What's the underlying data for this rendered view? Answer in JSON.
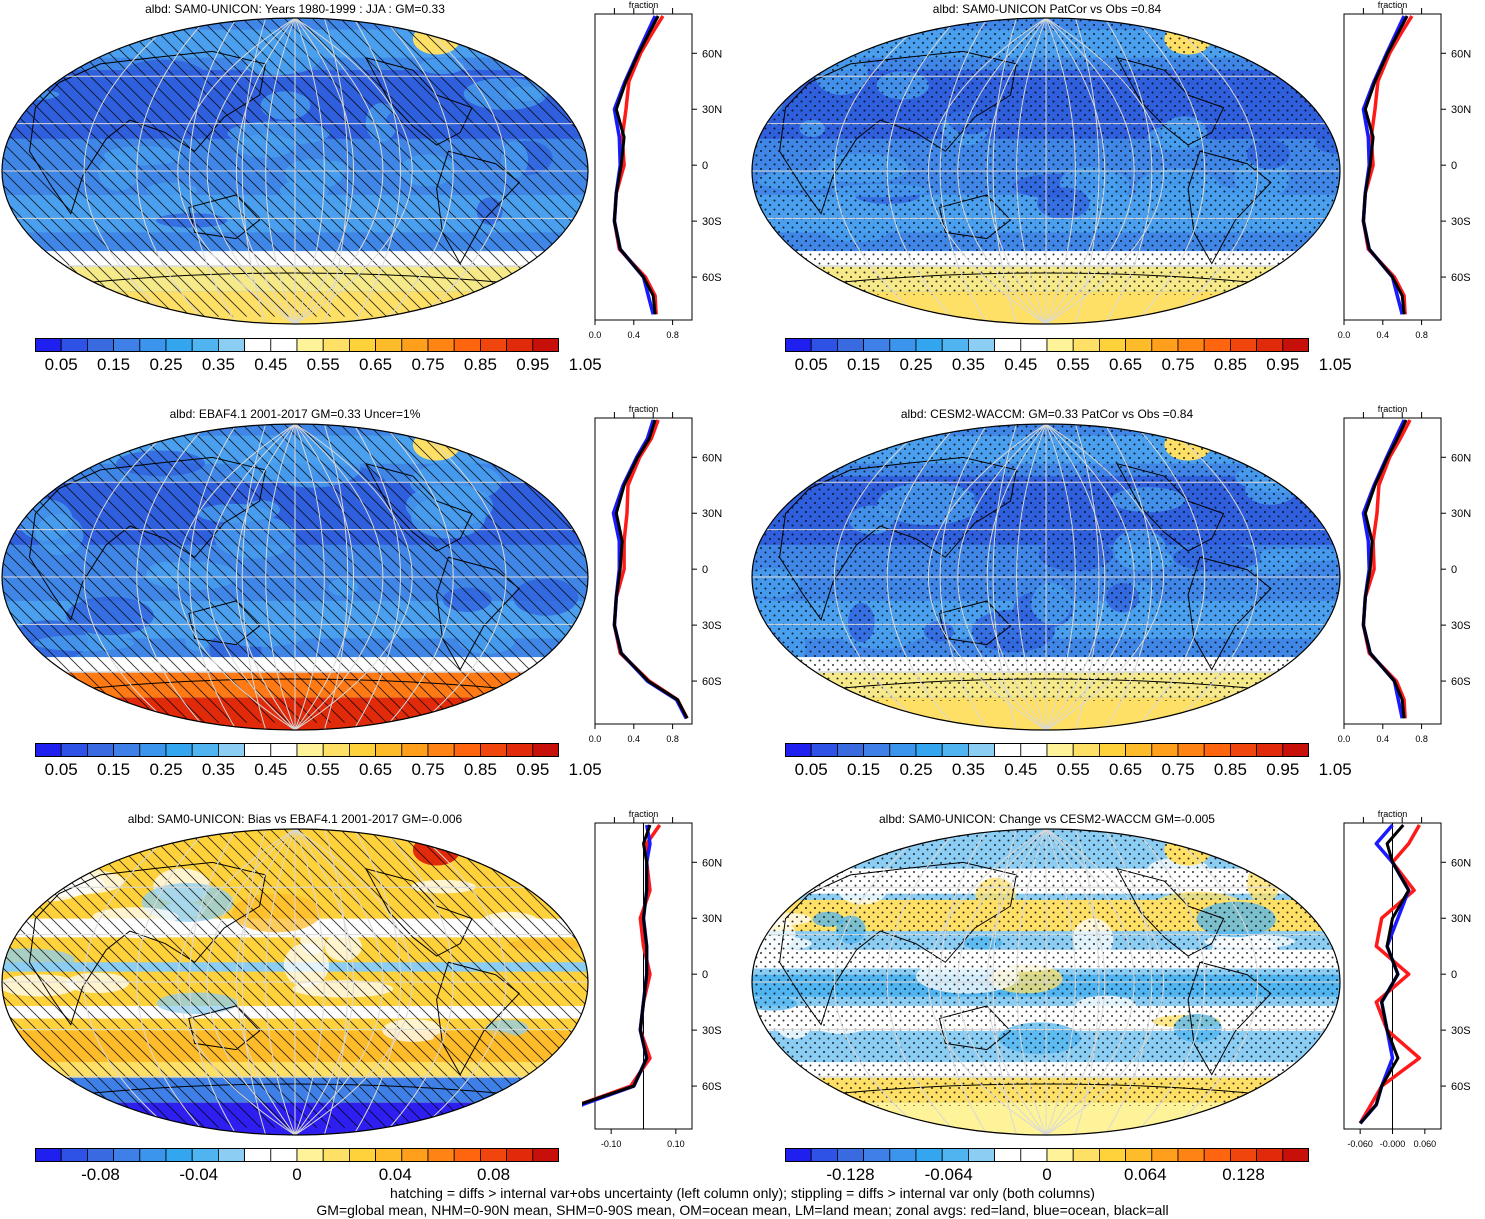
{
  "panels": [
    {
      "id": "p1",
      "title": "albd: SAM0-UNICON: Years 1980-1999 : JJA : GM=0.33",
      "kind": "abs",
      "overlay": "hatch",
      "zonal_xticks": [
        "0.0",
        "0.4",
        "0.8"
      ]
    },
    {
      "id": "p2",
      "title": "albd: SAM0-UNICON PatCor vs Obs =0.84",
      "kind": "abs",
      "overlay": "stipple",
      "zonal_xticks": [
        "0.0",
        "0.4",
        "0.8"
      ]
    },
    {
      "id": "p3",
      "title": "albd: EBAF4.1 2001-2017 GM=0.33 Uncer=1%",
      "kind": "obs",
      "overlay": "hatch",
      "zonal_xticks": [
        "0.0",
        "0.4",
        "0.8"
      ]
    },
    {
      "id": "p4",
      "title": "albd: CESM2-WACCM: GM=0.33 PatCor vs Obs =0.84",
      "kind": "abs",
      "overlay": "stipple",
      "zonal_xticks": [
        "0.0",
        "0.4",
        "0.8"
      ]
    },
    {
      "id": "p5",
      "title": "albd: SAM0-UNICON: Bias vs EBAF4.1 2001-2017 GM=-0.006",
      "kind": "bias",
      "overlay": "hatch",
      "zonal_xticks": [
        "-0.10",
        "0.10"
      ]
    },
    {
      "id": "p6",
      "title": "albd: SAM0-UNICON: Change vs CESM2-WACCM GM=-0.005",
      "kind": "change",
      "overlay": "stipple",
      "zonal_xticks": [
        "-0.060",
        "-0.000",
        "0.060"
      ]
    }
  ],
  "zonal": {
    "title": "fraction",
    "lat_ticks": [
      "60N",
      "30N",
      "0",
      "30S",
      "60S"
    ],
    "line_colors": {
      "land": "#ff1a1a",
      "ocean": "#1a1aff",
      "all": "#000000"
    }
  },
  "colorbars": {
    "abs": {
      "labels": [
        "0.05",
        "0.15",
        "0.25",
        "0.35",
        "0.45",
        "0.55",
        "0.65",
        "0.75",
        "0.85",
        "0.95",
        "1.05"
      ],
      "colors": [
        "#1f1ff0",
        "#2e52e6",
        "#3a6ae0",
        "#3f80e8",
        "#3b95ec",
        "#33a6ef",
        "#4fb4f0",
        "#8ccdf3",
        "#ffffff",
        "#ffffff",
        "#fff39a",
        "#ffe066",
        "#ffd23c",
        "#ffbc2a",
        "#ff9f1c",
        "#ff8414",
        "#ff650f",
        "#f0450c",
        "#e02a0a",
        "#c8100a"
      ]
    },
    "diff_bias": {
      "labels": [
        "-0.08",
        "-0.04",
        "0",
        "0.04",
        "0.08"
      ],
      "colors": [
        "#1f1ff0",
        "#2e52e6",
        "#3a6ae0",
        "#3f80e8",
        "#3b95ec",
        "#33a6ef",
        "#4fb4f0",
        "#8ccdf3",
        "#ffffff",
        "#ffffff",
        "#fff39a",
        "#ffe066",
        "#ffd23c",
        "#ffbc2a",
        "#ff9f1c",
        "#ff8414",
        "#ff650f",
        "#f0450c",
        "#e02a0a",
        "#c8100a"
      ]
    },
    "diff_change": {
      "labels": [
        "-0.128",
        "-0.064",
        "0",
        "0.064",
        "0.128"
      ],
      "colors": [
        "#1f1ff0",
        "#2e52e6",
        "#3a6ae0",
        "#3f80e8",
        "#3b95ec",
        "#33a6ef",
        "#4fb4f0",
        "#8ccdf3",
        "#ffffff",
        "#ffffff",
        "#fff39a",
        "#ffe066",
        "#ffd23c",
        "#ffbc2a",
        "#ff9f1c",
        "#ff8414",
        "#ff650f",
        "#f0450c",
        "#e02a0a",
        "#c8100a"
      ]
    }
  },
  "footer": {
    "line1": "hatching = diffs > internal var+obs uncertainty (left column only); stippling = diffs > internal var only (both columns)",
    "line2": "GM=global mean, NHM=0-90N mean, SHM=0-90S mean, OM=ocean mean, LM=land mean; zonal avgs: red=land, blue=ocean, black=all"
  },
  "chart_data": [
    {
      "type": "heatmap",
      "panel": "p1",
      "variable": "albd",
      "title": "albd: SAM0-UNICON: Years 1980-1999 : JJA : GM=0.33",
      "zonal_mean": {
        "lat": [
          80,
          70,
          60,
          45,
          30,
          15,
          0,
          -15,
          -30,
          -45,
          -60,
          -70,
          -80
        ],
        "all": [
          0.65,
          0.55,
          0.45,
          0.32,
          0.22,
          0.3,
          0.27,
          0.22,
          0.2,
          0.26,
          0.5,
          0.6,
          0.62
        ],
        "land": [
          0.7,
          0.58,
          0.47,
          0.35,
          0.32,
          0.28,
          0.3,
          0.22,
          0.2,
          0.25,
          0.52,
          0.62,
          0.63
        ],
        "ocean": [
          0.62,
          0.53,
          0.44,
          0.31,
          0.2,
          0.25,
          0.26,
          0.22,
          0.2,
          0.26,
          0.5,
          0.55,
          0.6
        ]
      }
    },
    {
      "type": "heatmap",
      "panel": "p2",
      "variable": "albd",
      "title": "albd: SAM0-UNICON PatCor vs Obs =0.84",
      "zonal_mean": {
        "lat": [
          80,
          70,
          60,
          45,
          30,
          15,
          0,
          -15,
          -30,
          -45,
          -60,
          -70,
          -80
        ],
        "all": [
          0.65,
          0.55,
          0.45,
          0.32,
          0.22,
          0.3,
          0.27,
          0.22,
          0.2,
          0.26,
          0.5,
          0.6,
          0.62
        ],
        "land": [
          0.7,
          0.58,
          0.47,
          0.35,
          0.32,
          0.28,
          0.3,
          0.22,
          0.2,
          0.25,
          0.52,
          0.62,
          0.63
        ],
        "ocean": [
          0.62,
          0.53,
          0.44,
          0.31,
          0.2,
          0.25,
          0.26,
          0.22,
          0.2,
          0.26,
          0.5,
          0.55,
          0.6
        ]
      }
    },
    {
      "type": "heatmap",
      "panel": "p3",
      "variable": "albd",
      "title": "albd: EBAF4.1 2001-2017 GM=0.33 Uncer=1%",
      "zonal_mean": {
        "lat": [
          80,
          70,
          60,
          45,
          30,
          15,
          0,
          -15,
          -30,
          -45,
          -60,
          -70,
          -80
        ],
        "all": [
          0.62,
          0.56,
          0.44,
          0.3,
          0.22,
          0.28,
          0.26,
          0.22,
          0.2,
          0.27,
          0.55,
          0.85,
          0.95
        ],
        "land": [
          0.65,
          0.58,
          0.46,
          0.34,
          0.33,
          0.3,
          0.3,
          0.22,
          0.2,
          0.26,
          0.56,
          0.85,
          0.95
        ],
        "ocean": [
          0.6,
          0.54,
          0.43,
          0.29,
          0.19,
          0.25,
          0.25,
          0.22,
          0.2,
          0.27,
          0.54,
          0.84,
          0.94
        ]
      }
    },
    {
      "type": "heatmap",
      "panel": "p4",
      "variable": "albd",
      "title": "albd: CESM2-WACCM: GM=0.33 PatCor vs Obs =0.84",
      "zonal_mean": {
        "lat": [
          80,
          70,
          60,
          45,
          30,
          15,
          0,
          -15,
          -30,
          -45,
          -60,
          -70,
          -80
        ],
        "all": [
          0.64,
          0.55,
          0.45,
          0.32,
          0.22,
          0.29,
          0.27,
          0.22,
          0.2,
          0.27,
          0.52,
          0.6,
          0.62
        ],
        "land": [
          0.68,
          0.58,
          0.47,
          0.36,
          0.34,
          0.3,
          0.31,
          0.22,
          0.2,
          0.26,
          0.54,
          0.62,
          0.63
        ],
        "ocean": [
          0.62,
          0.53,
          0.44,
          0.31,
          0.2,
          0.25,
          0.26,
          0.22,
          0.2,
          0.27,
          0.52,
          0.56,
          0.6
        ]
      }
    },
    {
      "type": "heatmap",
      "panel": "p5",
      "variable": "albd",
      "title": "albd: SAM0-UNICON: Bias vs EBAF4.1 2001-2017 GM=-0.006",
      "zonal_mean": {
        "lat": [
          80,
          70,
          60,
          45,
          30,
          15,
          0,
          -15,
          -30,
          -45,
          -60,
          -70,
          -80
        ],
        "all": [
          0.02,
          0.0,
          0.01,
          0.01,
          0.0,
          0.01,
          0.01,
          0.0,
          -0.01,
          0.01,
          -0.03,
          -0.2,
          -0.25
        ],
        "land": [
          0.05,
          0.01,
          0.01,
          0.02,
          -0.01,
          0.0,
          0.02,
          0.0,
          -0.01,
          0.02,
          -0.04,
          -0.2,
          -0.25
        ],
        "ocean": [
          0.01,
          0.02,
          0.01,
          0.01,
          0.0,
          0.01,
          0.01,
          0.0,
          -0.01,
          0.01,
          -0.03,
          -0.19,
          -0.25
        ]
      }
    },
    {
      "type": "heatmap",
      "panel": "p6",
      "variable": "albd",
      "title": "albd: SAM0-UNICON: Change vs CESM2-WACCM GM=-0.005",
      "zonal_mean": {
        "lat": [
          80,
          70,
          60,
          45,
          30,
          15,
          0,
          -15,
          -30,
          -45,
          -60,
          -70,
          -80
        ],
        "all": [
          0.02,
          -0.01,
          0.0,
          0.03,
          0.0,
          -0.01,
          0.01,
          -0.02,
          -0.01,
          0.01,
          -0.02,
          -0.03,
          -0.06
        ],
        "land": [
          0.05,
          0.03,
          0.0,
          0.04,
          -0.02,
          -0.03,
          0.03,
          -0.03,
          -0.01,
          0.05,
          -0.02,
          -0.04,
          -0.06
        ],
        "ocean": [
          0.0,
          -0.03,
          0.0,
          0.03,
          0.01,
          -0.01,
          0.01,
          -0.02,
          -0.01,
          0.0,
          -0.02,
          -0.03,
          -0.06
        ]
      }
    }
  ]
}
